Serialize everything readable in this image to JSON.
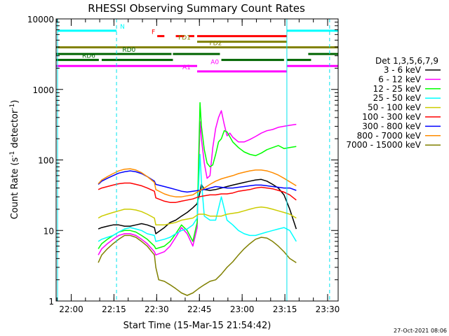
{
  "chart_data": {
    "type": "line",
    "title": "RHESSI Observing Summary Count Rates",
    "xlabel": "Start Time (15-Mar-15 21:54:42)",
    "ylabel": "Count Rate (s",
    "ylabel_sup": "-1",
    "ylabel_mid": " detector",
    "ylabel_end": ")",
    "x_units": "minutes after 21:54:42",
    "xlim": [
      0,
      99
    ],
    "ylim": [
      1,
      10000
    ],
    "y_scale": "log",
    "x_ticks": [
      "22:00",
      "22:15",
      "22:30",
      "22:45",
      "23:00",
      "23:15",
      "23:30"
    ],
    "x_tick_values": [
      5.3,
      20.3,
      35.3,
      50.3,
      65.3,
      80.3,
      95.3
    ],
    "y_ticks": [
      "1",
      "10",
      "100",
      "1000",
      "10000"
    ],
    "y_tick_values": [
      1,
      10,
      100,
      1000,
      10000
    ],
    "legend_title": "Det 1,3,5,6,7,9",
    "legend_position": "right",
    "footer": "27-Oct-2021 08:06",
    "series": [
      {
        "name": "3 - 6 keV",
        "color": "#000000",
        "x": [
          14.8,
          16,
          18,
          20,
          22,
          24,
          26,
          28,
          30,
          32,
          34.5,
          35,
          38,
          40,
          42,
          44,
          46,
          48,
          49.5,
          50.5,
          51,
          52,
          54,
          56,
          58,
          60,
          62,
          64,
          66,
          68,
          70,
          72,
          74,
          76,
          78,
          80,
          82,
          84.3
        ],
        "y": [
          10.5,
          11,
          11.5,
          12,
          12,
          11.5,
          11.5,
          12,
          12.5,
          12,
          11,
          9,
          11,
          13,
          14,
          16,
          18,
          21,
          24,
          35,
          45,
          38,
          37,
          38,
          40,
          42,
          44,
          46,
          48,
          50,
          52,
          53,
          50,
          45,
          40,
          32,
          20,
          10.5
        ]
      },
      {
        "name": "6 - 12 keV",
        "color": "#ff00ff",
        "x": [
          14.8,
          16,
          18,
          20,
          22,
          24,
          26,
          28,
          30,
          32,
          34.5,
          35,
          38,
          40,
          42,
          44,
          46,
          48,
          49.5,
          50.5,
          51,
          52,
          53,
          54,
          55,
          56,
          57,
          58,
          59,
          60,
          61,
          62,
          64,
          66,
          68,
          70,
          72,
          74,
          76,
          78,
          80,
          82,
          84.3
        ],
        "y": [
          4.5,
          5.5,
          6.5,
          7.5,
          8.5,
          9,
          9,
          8.5,
          7.5,
          6.5,
          5,
          4.5,
          5,
          6,
          8,
          11,
          9,
          6,
          11,
          350,
          200,
          90,
          55,
          60,
          150,
          280,
          400,
          500,
          320,
          220,
          240,
          210,
          180,
          180,
          195,
          215,
          240,
          260,
          270,
          290,
          300,
          310,
          320
        ]
      },
      {
        "name": "12 - 25 keV",
        "color": "#00ff00",
        "x": [
          14.8,
          16,
          18,
          20,
          22,
          24,
          26,
          28,
          30,
          32,
          34.5,
          35,
          38,
          40,
          42,
          44,
          46,
          48,
          49.5,
          50.5,
          51,
          52,
          53,
          54,
          55,
          56,
          57,
          58,
          59,
          60,
          62,
          64,
          66,
          68,
          70,
          72,
          74,
          76,
          78,
          80,
          82,
          84.3
        ],
        "y": [
          5.5,
          6.5,
          7.5,
          8.5,
          9.5,
          10,
          10,
          9.5,
          8.5,
          7.5,
          6,
          5.5,
          6,
          7,
          9,
          12,
          10,
          7,
          13,
          650,
          300,
          140,
          90,
          80,
          85,
          120,
          180,
          200,
          260,
          250,
          180,
          150,
          130,
          120,
          115,
          125,
          140,
          150,
          160,
          145,
          150,
          155
        ]
      },
      {
        "name": "25 - 50 keV",
        "color": "#00ffff",
        "x": [
          14.8,
          16,
          18,
          20,
          22,
          24,
          26,
          28,
          30,
          32,
          34.5,
          35,
          38,
          40,
          42,
          44,
          46,
          48,
          49.5,
          50.5,
          51,
          52,
          54,
          56,
          58,
          60,
          62,
          64,
          66,
          68,
          70,
          72,
          74,
          76,
          78,
          80,
          82,
          84.3
        ],
        "y": [
          7,
          7.5,
          8,
          8.5,
          9.5,
          10.5,
          11,
          10.5,
          10,
          9,
          8.5,
          7,
          7.5,
          8,
          9,
          10,
          10.5,
          12,
          15,
          120,
          50,
          16,
          14,
          14,
          30,
          14,
          12,
          10,
          9,
          8.5,
          8.5,
          9,
          9.5,
          10,
          10.5,
          11,
          10,
          7
        ]
      },
      {
        "name": "50 - 100 keV",
        "color": "#cccc00",
        "x": [
          14.8,
          16,
          18,
          20,
          22,
          24,
          26,
          28,
          30,
          32,
          34.5,
          35,
          38,
          40,
          42,
          44,
          46,
          48,
          50,
          52,
          54,
          56,
          58,
          60,
          62,
          64,
          66,
          68,
          70,
          72,
          74,
          76,
          78,
          80,
          82,
          84.3
        ],
        "y": [
          15,
          16,
          17,
          18,
          19,
          20,
          20,
          19.5,
          18.5,
          17,
          15,
          12,
          12,
          12.5,
          13,
          14,
          14.5,
          15,
          17,
          17,
          16,
          16,
          16,
          17,
          17.5,
          18,
          19,
          20,
          21,
          21.5,
          21,
          20,
          19,
          18,
          17,
          15
        ]
      },
      {
        "name": "100 - 300 keV",
        "color": "#ff0000",
        "x": [
          14.8,
          16,
          18,
          20,
          22,
          24,
          26,
          28,
          30,
          32,
          34.5,
          35,
          38,
          40,
          42,
          44,
          46,
          48,
          50,
          52,
          54,
          56,
          58,
          60,
          62,
          64,
          66,
          68,
          70,
          72,
          74,
          76,
          78,
          80,
          82,
          84.3
        ],
        "y": [
          38,
          40,
          42,
          44,
          46,
          47,
          47,
          45,
          43,
          40,
          36,
          29,
          26,
          25,
          25,
          26,
          27,
          28,
          30,
          31,
          32,
          32,
          33,
          33,
          34,
          36,
          37,
          38,
          40,
          41,
          40,
          39,
          37,
          35,
          32,
          27
        ]
      },
      {
        "name": "300 - 800 keV",
        "color": "#0000ff",
        "x": [
          14.8,
          16,
          18,
          20,
          22,
          24,
          26,
          28,
          30,
          32,
          34.5,
          35,
          38,
          40,
          42,
          44,
          46,
          48,
          50,
          52,
          54,
          56,
          58,
          60,
          62,
          64,
          66,
          68,
          70,
          72,
          74,
          76,
          78,
          80,
          82,
          84.3
        ],
        "y": [
          45,
          50,
          55,
          60,
          65,
          68,
          70,
          68,
          64,
          58,
          50,
          45,
          42,
          40,
          38,
          36,
          35,
          36,
          37,
          38,
          40,
          42,
          41,
          40,
          40,
          41,
          42,
          43,
          44,
          44,
          43,
          42,
          41,
          40,
          40,
          37
        ]
      },
      {
        "name": "800 - 7000 keV",
        "color": "#ff8c00",
        "x": [
          14.8,
          16,
          18,
          20,
          22,
          24,
          26,
          28,
          30,
          32,
          34.5,
          35,
          38,
          40,
          42,
          44,
          46,
          48,
          50,
          52,
          54,
          56,
          58,
          60,
          62,
          64,
          66,
          68,
          70,
          72,
          74,
          76,
          78,
          80,
          82,
          84.3
        ],
        "y": [
          46,
          52,
          58,
          64,
          70,
          74,
          75,
          72,
          66,
          58,
          48,
          38,
          33,
          31,
          30,
          30,
          31,
          32,
          36,
          40,
          45,
          50,
          54,
          57,
          60,
          64,
          67,
          70,
          72,
          72,
          70,
          66,
          61,
          55,
          49,
          43
        ]
      },
      {
        "name": "7000 - 15000 keV",
        "color": "#808000",
        "x": [
          14.8,
          16,
          18,
          20,
          22,
          24,
          26,
          28,
          30,
          32,
          34.5,
          35,
          36,
          38,
          40,
          42,
          44,
          46,
          48,
          50,
          52,
          54,
          56,
          58,
          60,
          62,
          64,
          66,
          68,
          70,
          72,
          74,
          76,
          78,
          80,
          82,
          84.3
        ],
        "y": [
          3.5,
          4.5,
          5.5,
          6.5,
          7.5,
          8.5,
          8.5,
          8,
          7,
          6,
          4.5,
          3,
          2,
          1.9,
          1.7,
          1.5,
          1.3,
          1.2,
          1.3,
          1.5,
          1.7,
          1.9,
          2,
          2.4,
          3,
          3.6,
          4.5,
          5.5,
          6.5,
          7.5,
          8,
          7.8,
          7,
          6,
          5,
          4,
          3.5
        ]
      }
    ],
    "vlines": [
      {
        "x": 0.5,
        "color": "#00e5ee",
        "dash": false
      },
      {
        "x": 21.2,
        "color": "#00e5ee",
        "dash": true
      },
      {
        "x": 81,
        "color": "#00e5ee",
        "dash": false
      },
      {
        "x": 96,
        "color": "#00e5ee",
        "dash": true
      }
    ],
    "flags": [
      {
        "label": "N",
        "color": "#00ffff",
        "y_value": 6800,
        "dashed": false,
        "segments": [
          [
            0.5,
            21.2
          ],
          [
            81,
            99
          ]
        ],
        "label_x": 21.2,
        "label_side": "right"
      },
      {
        "label": "F",
        "color": "#ff0000",
        "y_value": 5700,
        "dashed": false,
        "segments": [
          [
            35.5,
            38
          ],
          [
            42,
            45
          ],
          [
            46.5,
            48.5
          ],
          [
            49.5,
            81
          ]
        ],
        "label_x": 35.5,
        "label_side": "left"
      },
      {
        "label": "FD1",
        "color": "#808000",
        "y_value": 4750,
        "dashed": false,
        "segments": [
          [
            49.5,
            81
          ]
        ],
        "label_x": 48,
        "label_side": "left"
      },
      {
        "label": "FD2",
        "color": "#808000",
        "y_value": 3950,
        "dashed": false,
        "segments": [
          [
            0,
            99
          ]
        ],
        "label_x": 56,
        "label_side": "center"
      },
      {
        "label": "RD0",
        "color": "#006400",
        "y_value": 3180,
        "dashed": false,
        "segments": [
          [
            0,
            40.5
          ],
          [
            41,
            57.5
          ],
          [
            88.5,
            99
          ]
        ],
        "label_x": 22,
        "label_side": "right"
      },
      {
        "label": "RD6",
        "color": "#006400",
        "y_value": 2620,
        "dashed": false,
        "segments": [
          [
            0,
            15
          ],
          [
            16,
            41
          ],
          [
            58,
            80
          ],
          [
            81,
            89.5
          ]
        ],
        "label_x": 14.5,
        "label_side": "left"
      },
      {
        "label": "A0",
        "color": "#ff00ff",
        "y_value": 2150,
        "dashed": false,
        "segments": [
          [
            0,
            49.5
          ],
          [
            81,
            99
          ]
        ],
        "label_x": 53,
        "label_side": "right"
      },
      {
        "label": "A1",
        "color": "#ff00ff",
        "y_value": 1800,
        "dashed": false,
        "segments": [
          [
            49.5,
            81
          ]
        ],
        "label_x": 48,
        "label_side": "left"
      }
    ]
  }
}
